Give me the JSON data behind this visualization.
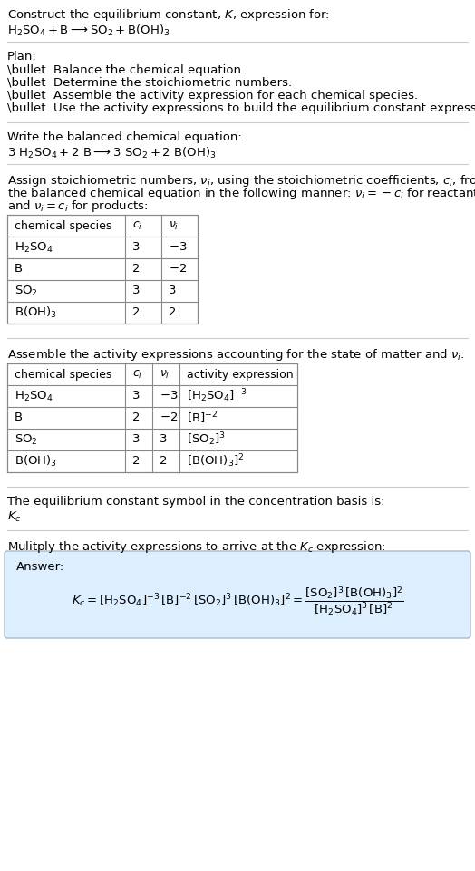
{
  "title_line1": "Construct the equilibrium constant, $K$, expression for:",
  "title_line2": "$\\mathrm{H_2SO_4 + B \\longrightarrow SO_2 + B(OH)_3}$",
  "plan_header": "Plan:",
  "plan_items": [
    "\\bullet  Balance the chemical equation.",
    "\\bullet  Determine the stoichiometric numbers.",
    "\\bullet  Assemble the activity expression for each chemical species.",
    "\\bullet  Use the activity expressions to build the equilibrium constant expression."
  ],
  "balanced_header": "Write the balanced chemical equation:",
  "balanced_eq": "$\\mathrm{3\\ H_2SO_4 + 2\\ B \\longrightarrow 3\\ SO_2 + 2\\ B(OH)_3}$",
  "stoich_intro": "Assign stoichiometric numbers, $\\nu_i$, using the stoichiometric coefficients, $c_i$, from\nthe balanced chemical equation in the following manner: $\\nu_i = -c_i$ for reactants\nand $\\nu_i = c_i$ for products:",
  "table1_headers": [
    "chemical species",
    "$c_i$",
    "$\\nu_i$"
  ],
  "table1_rows": [
    [
      "$\\mathrm{H_2SO_4}$",
      "3",
      "$-3$"
    ],
    [
      "B",
      "2",
      "$-2$"
    ],
    [
      "$\\mathrm{SO_2}$",
      "3",
      "3"
    ],
    [
      "$\\mathrm{B(OH)_3}$",
      "2",
      "2"
    ]
  ],
  "assemble_intro": "Assemble the activity expressions accounting for the state of matter and $\\nu_i$:",
  "table2_headers": [
    "chemical species",
    "$c_i$",
    "$\\nu_i$",
    "activity expression"
  ],
  "table2_rows": [
    [
      "$\\mathrm{H_2SO_4}$",
      "3",
      "$-3$",
      "$[\\mathrm{H_2SO_4}]^{-3}$"
    ],
    [
      "B",
      "2",
      "$-2$",
      "$[\\mathrm{B}]^{-2}$"
    ],
    [
      "$\\mathrm{SO_2}$",
      "3",
      "3",
      "$[\\mathrm{SO_2}]^{3}$"
    ],
    [
      "$\\mathrm{B(OH)_3}$",
      "2",
      "2",
      "$[\\mathrm{B(OH)_3}]^{2}$"
    ]
  ],
  "kc_intro": "The equilibrium constant symbol in the concentration basis is:",
  "kc_symbol": "$K_c$",
  "multiply_intro": "Mulitply the activity expressions to arrive at the $K_c$ expression:",
  "answer_label": "Answer:",
  "kc_expression": "$K_c = [\\mathrm{H_2SO_4}]^{-3}\\,[\\mathrm{B}]^{-2}\\,[\\mathrm{SO_2}]^{3}\\,[\\mathrm{B(OH)_3}]^{2} = \\dfrac{[\\mathrm{SO_2}]^{3}\\,[\\mathrm{B(OH)_3}]^{2}}{[\\mathrm{H_2SO_4}]^{3}\\,[\\mathrm{B}]^{2}}$",
  "bg_color": "#ffffff",
  "table_border_color": "#aaaaaa",
  "answer_box_color": "#ddeeff",
  "answer_box_border": "#aabbcc",
  "font_size": 9.5,
  "title_font_size": 10
}
